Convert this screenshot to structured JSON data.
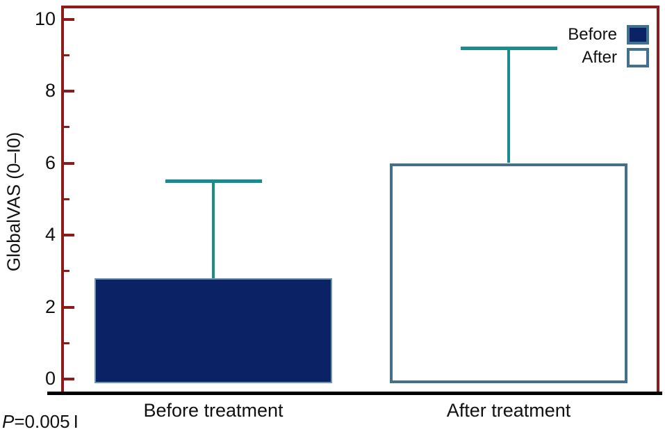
{
  "figure": {
    "ylabel": "GlobalVAS (0–I0)",
    "annotation": {
      "p": "P",
      "value": "=0.005",
      "suffix": "I",
      "full": "P=0.005 I"
    }
  },
  "chart_data": {
    "type": "bar",
    "title": "",
    "xlabel": "",
    "ylabel": "GlobalVAS (0–I0)",
    "categories": [
      "Before treatment",
      "After treatment"
    ],
    "series": [
      {
        "name": "Before",
        "value": 2.8,
        "error_top": 5.5,
        "fill": "#0B2264",
        "border": "#6E93AE"
      },
      {
        "name": "After",
        "value": 6.0,
        "error_top": 9.2,
        "fill": "#FFFFFF",
        "border": "#44708F"
      }
    ],
    "ylim": [
      0,
      10
    ],
    "yticks": [
      0,
      2,
      4,
      6,
      8,
      10
    ],
    "yminor_step": 1,
    "grid": false,
    "legend_position": "top-right",
    "legend_labels": [
      "Before",
      "After"
    ],
    "error_bar_color": "#1A8C8C",
    "axis_frame_color": "#8E1B1B",
    "bottom_axis_color": "#000000",
    "annotation": "P=0.005 I"
  }
}
